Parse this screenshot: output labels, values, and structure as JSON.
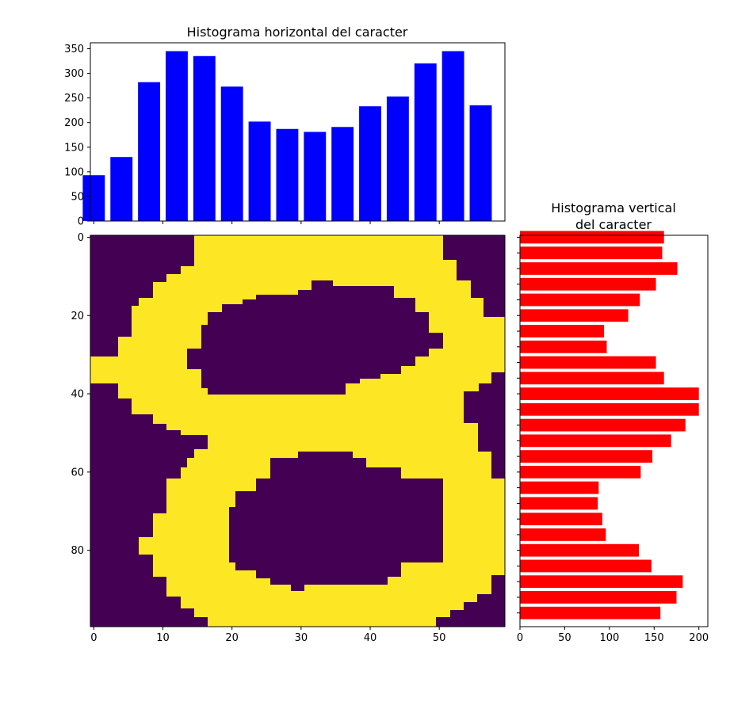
{
  "colors": {
    "horizontal_bars": "#0000ff",
    "vertical_bars": "#ff0000",
    "background": "#440154",
    "foreground": "#fde725"
  },
  "chart_data": [
    {
      "type": "bar",
      "orientation": "vertical",
      "title": "Histograma horizontal del caracter",
      "x": [
        0,
        4,
        8,
        12,
        16,
        20,
        24,
        28,
        32,
        36,
        40,
        44,
        48,
        52,
        56
      ],
      "values": [
        93,
        130,
        282,
        345,
        335,
        273,
        202,
        187,
        181,
        191,
        233,
        253,
        320,
        345,
        235
      ],
      "xlim": [
        -0.5,
        59.5
      ],
      "ylim": [
        0,
        362
      ],
      "yticks": [
        0,
        50,
        100,
        150,
        200,
        250,
        300,
        350
      ],
      "xticks": [
        0,
        10,
        20,
        30,
        40,
        50
      ],
      "grid": false,
      "color": "#0000ff"
    },
    {
      "type": "heatmap",
      "title": "",
      "colormap": "viridis",
      "shape": [
        100,
        60
      ],
      "xticks": [
        0,
        10,
        20,
        30,
        40,
        50
      ],
      "yticks": [
        0,
        20,
        40,
        60,
        80
      ],
      "description_cells": "binary image of digit 8"
    },
    {
      "type": "bar",
      "orientation": "horizontal",
      "title": "Histograma vertical\ndel caracter",
      "y": [
        0,
        4,
        8,
        12,
        16,
        20,
        24,
        28,
        32,
        36,
        40,
        44,
        48,
        52,
        56,
        60,
        64,
        68,
        72,
        76,
        80,
        84,
        88,
        92,
        96
      ],
      "values": [
        161,
        159,
        176,
        152,
        134,
        121,
        94,
        97,
        152,
        161,
        200,
        200,
        185,
        169,
        148,
        135,
        88,
        87,
        92,
        96,
        133,
        147,
        182,
        175,
        157
      ],
      "xlim": [
        0,
        210
      ],
      "xticks": [
        0,
        50,
        100,
        150,
        200
      ],
      "ylim": [
        99.5,
        -0.5
      ],
      "grid": false,
      "color": "#ff0000"
    }
  ],
  "titles": {
    "top": "Histograma horizontal del caracter",
    "right_line1": "Histograma vertical",
    "right_line2": "del caracter"
  }
}
